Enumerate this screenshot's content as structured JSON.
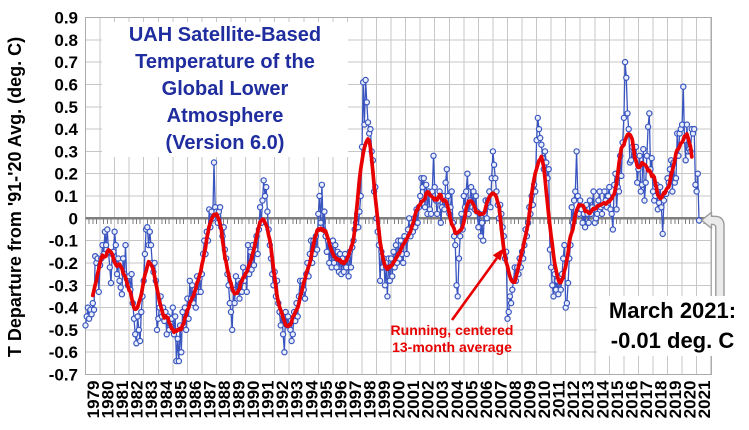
{
  "title": {
    "lines": [
      "UAH Satellite-Based",
      "Temperature of the",
      "Global Lower Atmosphere",
      "(Version 6.0)"
    ],
    "color": "#1f2d9e"
  },
  "y_axis_label": "T Departure from '91-'20 Avg. (deg. C)",
  "annotation": {
    "lines": [
      "Running, centered",
      "13-month average"
    ],
    "color": "#e80000"
  },
  "callout": {
    "lines": [
      "March 2021:",
      "-0.01 deg. C"
    ],
    "color": "#000000"
  },
  "chart_data": {
    "type": "line",
    "title": "UAH Satellite-Based Temperature of the Global Lower Atmosphere (Version 6.0)",
    "ylabel": "T Departure from '91-'20 Avg. (deg. C)",
    "ylim": [
      -0.7,
      0.9
    ],
    "ytick_step": 0.1,
    "grid": true,
    "legend": "none",
    "x_start": "1979-01",
    "x_end": "2021-03",
    "latest_point": {
      "label": "March 2021:",
      "value_degC": -0.01
    },
    "overlay_series": "running centered 13-month average of monthly anomalies",
    "ytick_labels": [
      "0.9",
      "0.8",
      "0.7",
      "0.6",
      "0.5",
      "0.4",
      "0.3",
      "0.2",
      "0.1",
      "0",
      "-0.1",
      "-0.2",
      "-0.3",
      "-0.4",
      "-0.5",
      "-0.6",
      "-0.7"
    ],
    "xtick_labels": [
      "1979",
      "1980",
      "1981",
      "1982",
      "1983",
      "1984",
      "1985",
      "1986",
      "1987",
      "1988",
      "1989",
      "1990",
      "1991",
      "1992",
      "1993",
      "1994",
      "1995",
      "1996",
      "1997",
      "1998",
      "1999",
      "2000",
      "2001",
      "2002",
      "2003",
      "2004",
      "2005",
      "2006",
      "2007",
      "2008",
      "2009",
      "2010",
      "2011",
      "2012",
      "2013",
      "2014",
      "2015",
      "2016",
      "2017",
      "2018",
      "2019",
      "2020",
      "2021"
    ],
    "monthly_anomalies_degC": [
      -0.48,
      -0.44,
      -0.4,
      -0.45,
      -0.41,
      -0.43,
      -0.38,
      -0.41,
      -0.17,
      -0.2,
      -0.18,
      -0.33,
      -0.21,
      -0.18,
      -0.12,
      -0.16,
      -0.06,
      -0.12,
      -0.05,
      -0.15,
      -0.22,
      -0.29,
      -0.16,
      -0.15,
      -0.06,
      -0.12,
      -0.25,
      -0.18,
      -0.28,
      -0.31,
      -0.34,
      -0.18,
      -0.25,
      -0.12,
      -0.27,
      -0.3,
      -0.26,
      -0.32,
      -0.25,
      -0.38,
      -0.45,
      -0.52,
      -0.56,
      -0.44,
      -0.5,
      -0.55,
      -0.42,
      -0.35,
      -0.28,
      -0.16,
      -0.05,
      -0.04,
      -0.12,
      -0.06,
      -0.12,
      -0.2,
      -0.24,
      -0.2,
      -0.28,
      -0.5,
      -0.45,
      -0.4,
      -0.35,
      -0.44,
      -0.4,
      -0.46,
      -0.42,
      -0.52,
      -0.44,
      -0.5,
      -0.47,
      -0.45,
      -0.4,
      -0.52,
      -0.44,
      -0.64,
      -0.54,
      -0.64,
      -0.48,
      -0.6,
      -0.42,
      -0.48,
      -0.4,
      -0.5,
      -0.36,
      -0.45,
      -0.28,
      -0.36,
      -0.3,
      -0.38,
      -0.32,
      -0.4,
      -0.26,
      -0.33,
      -0.27,
      -0.33,
      -0.25,
      -0.16,
      -0.1,
      -0.16,
      -0.06,
      -0.1,
      0.04,
      -0.04,
      0.03,
      0.0,
      0.25,
      0.05,
      0.03,
      -0.02,
      0.03,
      0.05,
      -0.04,
      -0.08,
      -0.04,
      -0.14,
      -0.18,
      -0.25,
      -0.3,
      -0.38,
      -0.42,
      -0.5,
      -0.32,
      -0.38,
      -0.26,
      -0.33,
      -0.28,
      -0.36,
      -0.29,
      -0.33,
      -0.22,
      -0.28,
      -0.24,
      -0.33,
      -0.12,
      -0.25,
      -0.15,
      -0.23,
      -0.12,
      -0.21,
      -0.14,
      -0.08,
      -0.16,
      -0.05,
      0.05,
      -0.02,
      0.08,
      0.17,
      0.1,
      0.14,
      0.03,
      -0.05,
      -0.12,
      -0.18,
      -0.25,
      -0.3,
      -0.24,
      -0.35,
      -0.28,
      -0.38,
      -0.42,
      -0.48,
      -0.43,
      -0.52,
      -0.6,
      -0.42,
      -0.48,
      -0.44,
      -0.48,
      -0.5,
      -0.55,
      -0.52,
      -0.42,
      -0.46,
      -0.38,
      -0.44,
      -0.35,
      -0.28,
      -0.35,
      -0.28,
      -0.32,
      -0.36,
      -0.25,
      -0.2,
      -0.26,
      -0.16,
      -0.1,
      -0.2,
      -0.1,
      -0.16,
      -0.08,
      -0.14,
      0.02,
      0.1,
      -0.02,
      0.15,
      -0.05,
      0.03,
      -0.08,
      -0.15,
      -0.1,
      -0.2,
      -0.12,
      -0.22,
      -0.1,
      -0.2,
      -0.12,
      -0.22,
      -0.15,
      -0.24,
      -0.16,
      -0.25,
      -0.18,
      -0.24,
      -0.16,
      -0.22,
      -0.18,
      -0.26,
      -0.15,
      -0.22,
      -0.13,
      -0.1,
      -0.05,
      -0.02,
      0.02,
      -0.04,
      0.03,
      0.1,
      0.32,
      0.61,
      0.42,
      0.62,
      0.52,
      0.43,
      0.38,
      0.4,
      0.3,
      0.26,
      0.12,
      0.14,
      0.0,
      -0.06,
      -0.12,
      -0.28,
      -0.15,
      -0.22,
      -0.18,
      -0.3,
      -0.22,
      -0.35,
      -0.18,
      -0.28,
      -0.18,
      -0.26,
      -0.15,
      -0.22,
      -0.12,
      -0.2,
      -0.1,
      -0.18,
      -0.1,
      -0.16,
      -0.2,
      -0.08,
      -0.1,
      -0.16,
      -0.05,
      0.0,
      -0.08,
      -0.02,
      -0.06,
      0.0,
      -0.04,
      0.04,
      -0.02,
      0.05,
      0.1,
      0.18,
      0.14,
      0.18,
      0.05,
      0.15,
      0.02,
      0.12,
      0.04,
      0.02,
      0.12,
      0.28,
      0.14,
      0.08,
      0.02,
      0.08,
      0.12,
      -0.02,
      0.05,
      0.1,
      0.04,
      0.16,
      0.22,
      0.1,
      0.02,
      0.05,
      0.12,
      -0.02,
      -0.08,
      -0.12,
      -0.3,
      -0.35,
      -0.18,
      -0.08,
      0.02,
      -0.05,
      0.1,
      0.05,
      0.12,
      0.2,
      0.02,
      0.08,
      0.14,
      0.05,
      0.12,
      0.04,
      0.1,
      0.03,
      -0.04,
      0.02,
      -0.08,
      -0.02,
      -0.1,
      0.02,
      0.08,
      0.0,
      0.08,
      0.12,
      0.05,
      0.18,
      0.3,
      0.24,
      0.18,
      0.12,
      0.06,
      0.0,
      0.06,
      0.02,
      -0.04,
      -0.08,
      -0.18,
      -0.15,
      -0.45,
      -0.42,
      -0.35,
      -0.38,
      -0.32,
      -0.28,
      -0.22,
      -0.28,
      -0.22,
      -0.25,
      -0.18,
      -0.22,
      -0.15,
      -0.18,
      -0.12,
      -0.05,
      -0.08,
      -0.02,
      0.05,
      0.02,
      0.1,
      0.06,
      0.15,
      0.12,
      0.35,
      0.45,
      0.4,
      0.36,
      0.33,
      0.27,
      0.22,
      0.3,
      0.25,
      0.18,
      0.22,
      -0.14,
      -0.22,
      -0.3,
      -0.35,
      -0.25,
      -0.32,
      -0.28,
      -0.34,
      -0.26,
      -0.32,
      -0.25,
      -0.18,
      -0.12,
      -0.4,
      -0.38,
      -0.29,
      -0.18,
      -0.12,
      0.05,
      -0.02,
      0.08,
      0.12,
      0.3,
      0.1,
      0.02,
      0.08,
      0.04,
      -0.02,
      0.02,
      -0.04,
      0.06,
      0.02,
      -0.02,
      0.08,
      0.02,
      0.05,
      0.12,
      -0.02,
      0.0,
      0.02,
      0.08,
      0.12,
      0.05,
      0.02,
      0.06,
      0.12,
      0.08,
      0.05,
      0.1,
      0.14,
      0.04,
      0.02,
      -0.05,
      0.15,
      0.2,
      0.04,
      0.14,
      0.12,
      0.28,
      0.19,
      0.34,
      0.45,
      0.7,
      0.63,
      0.47,
      0.4,
      0.25,
      0.26,
      0.32,
      0.3,
      0.28,
      0.32,
      0.16,
      0.22,
      0.28,
      0.12,
      0.15,
      0.31,
      0.08,
      0.16,
      0.28,
      0.41,
      0.47,
      0.22,
      0.27,
      0.12,
      0.08,
      0.1,
      0.15,
      0.04,
      0.07,
      0.14,
      0.05,
      -0.07,
      0.08,
      0.11,
      0.11,
      0.18,
      0.16,
      0.22,
      0.26,
      0.12,
      0.25,
      0.16,
      0.18,
      0.38,
      0.28,
      0.38,
      0.4,
      0.42,
      0.59,
      0.35,
      0.26,
      0.42,
      0.3,
      0.31,
      0.3,
      0.4,
      0.38,
      0.4,
      0.15,
      0.12,
      0.2,
      -0.01
    ],
    "colors": {
      "monthly_line": "#3a55c0",
      "monthly_marker_fill": "#e9effb",
      "average_line": "#e80000",
      "zero_line": "#7f7f7f",
      "grid": "#c7c7c7",
      "border": "#ababab",
      "callout_arrow_fill": "#ebebeb",
      "callout_arrow_stroke": "#9b9b9b"
    }
  }
}
